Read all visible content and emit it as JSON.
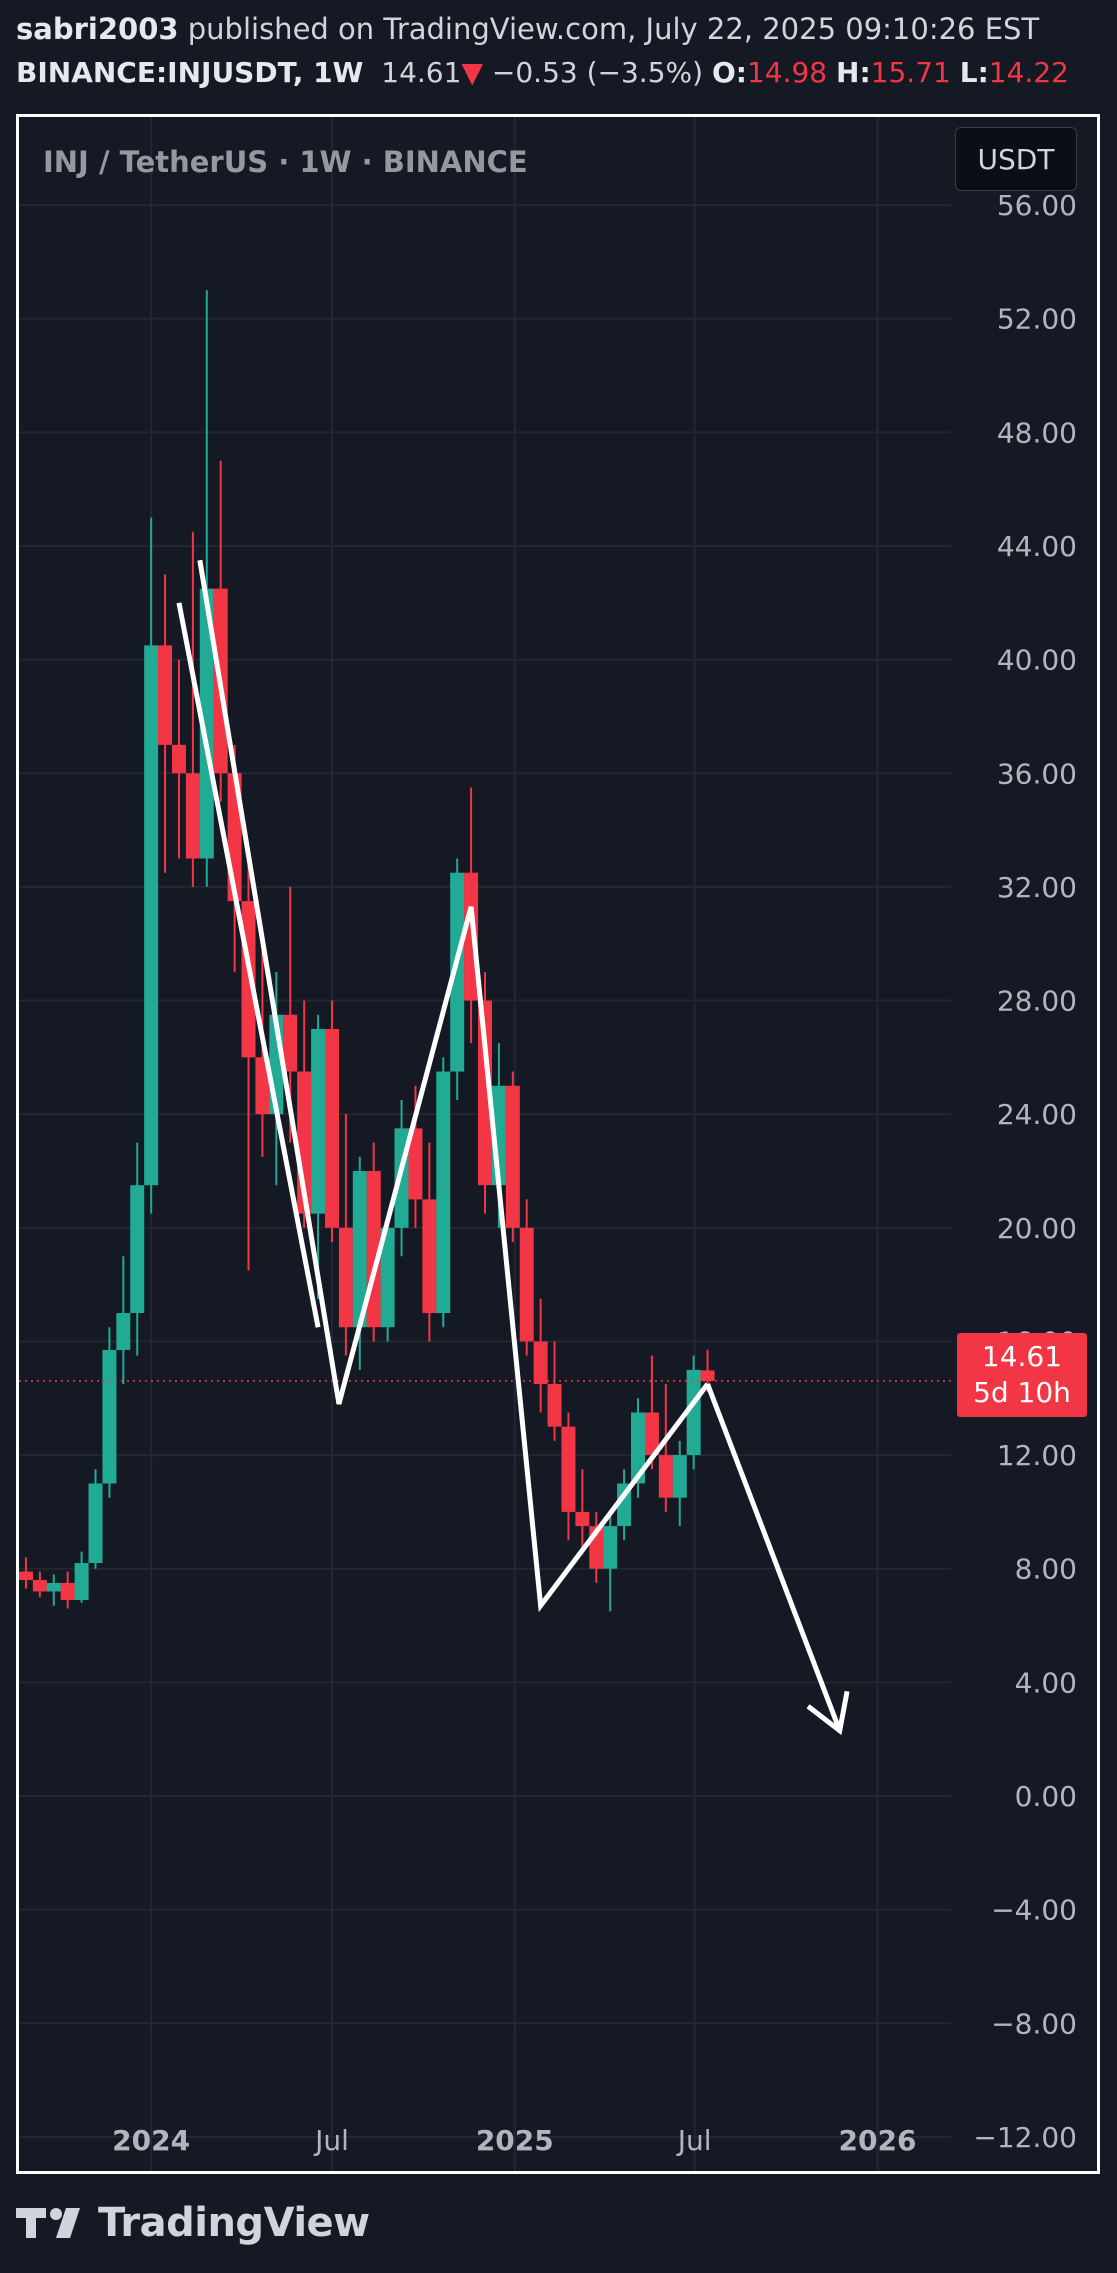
{
  "header": {
    "author": "sabri2003",
    "published_text": "published on TradingView.com, July 22, 2025 09:10:26 EST",
    "symbol": "BINANCE:INJUSDT, 1W",
    "last_price": "14.61",
    "change_arrow": "▼",
    "change": "−0.53 (−3.5%)",
    "open_label": "O:",
    "open": "14.98",
    "high_label": "H:",
    "high": "15.71",
    "low_label": "L:",
    "low": "14.22"
  },
  "chart_legend": "INJ / TetherUS · 1W · BINANCE",
  "currency_button": "USDT",
  "price_tag": {
    "price": "14.61",
    "countdown": "5d 10h"
  },
  "footer": {
    "logo_text": "TradingView",
    "logo_icon": "tradingview-logo-icon"
  },
  "colors": {
    "background": "#151924",
    "up": "#22ab94",
    "down": "#f23645",
    "grid": "#232733",
    "drawing": "#ffffff"
  },
  "chart_data": {
    "type": "candlestick",
    "title": "INJ / TetherUS · 1W · BINANCE",
    "interval": "1W",
    "x_tick_labels": [
      "2024",
      "Jul",
      "2025",
      "Jul",
      "2026"
    ],
    "x_ticks": [
      "2024-01-01",
      "2024-07-01",
      "2025-01-01",
      "2025-07-01",
      "2026-01-01"
    ],
    "x_range": [
      "2023-08-21",
      "2026-03-16"
    ],
    "y_tick_labels": [
      "56.00",
      "52.00",
      "48.00",
      "44.00",
      "40.00",
      "36.00",
      "32.00",
      "28.00",
      "24.00",
      "20.00",
      "16.00",
      "12.00",
      "8.00",
      "4.00",
      "0.00",
      "−4.00",
      "−8.00",
      "−12.00"
    ],
    "y_range": [
      -13.2,
      59.1
    ],
    "grid": true,
    "current_price": 14.61,
    "candles": [
      {
        "date": "2023-08-28",
        "open": 7.9,
        "high": 8.4,
        "low": 7.3,
        "close": 7.6
      },
      {
        "date": "2023-09-11",
        "open": 7.6,
        "high": 7.9,
        "low": 7.0,
        "close": 7.2
      },
      {
        "date": "2023-09-25",
        "open": 7.2,
        "high": 7.8,
        "low": 6.7,
        "close": 7.5
      },
      {
        "date": "2023-10-09",
        "open": 7.5,
        "high": 7.9,
        "low": 6.6,
        "close": 6.9
      },
      {
        "date": "2023-10-23",
        "open": 6.9,
        "high": 8.6,
        "low": 6.8,
        "close": 8.2
      },
      {
        "date": "2023-11-06",
        "open": 8.2,
        "high": 11.5,
        "low": 8.0,
        "close": 11.0
      },
      {
        "date": "2023-11-20",
        "open": 11.0,
        "high": 16.5,
        "low": 10.5,
        "close": 15.7
      },
      {
        "date": "2023-12-04",
        "open": 15.7,
        "high": 19.0,
        "low": 14.5,
        "close": 17.0
      },
      {
        "date": "2023-12-18",
        "open": 17.0,
        "high": 23.0,
        "low": 15.5,
        "close": 21.5
      },
      {
        "date": "2024-01-01",
        "open": 21.5,
        "high": 45.0,
        "low": 20.5,
        "close": 40.5
      },
      {
        "date": "2024-01-15",
        "open": 40.5,
        "high": 43.0,
        "low": 32.5,
        "close": 37.0
      },
      {
        "date": "2024-01-29",
        "open": 37.0,
        "high": 40.0,
        "low": 33.0,
        "close": 36.0
      },
      {
        "date": "2024-02-12",
        "open": 36.0,
        "high": 44.5,
        "low": 32.0,
        "close": 33.0
      },
      {
        "date": "2024-02-26",
        "open": 33.0,
        "high": 53.0,
        "low": 32.0,
        "close": 42.5
      },
      {
        "date": "2024-03-11",
        "open": 42.5,
        "high": 47.0,
        "low": 35.0,
        "close": 36.0
      },
      {
        "date": "2024-03-25",
        "open": 36.0,
        "high": 37.0,
        "low": 29.0,
        "close": 31.5
      },
      {
        "date": "2024-04-08",
        "open": 31.5,
        "high": 33.0,
        "low": 18.5,
        "close": 26.0
      },
      {
        "date": "2024-04-22",
        "open": 26.0,
        "high": 30.0,
        "low": 22.5,
        "close": 24.0
      },
      {
        "date": "2024-05-06",
        "open": 24.0,
        "high": 29.0,
        "low": 21.5,
        "close": 27.5
      },
      {
        "date": "2024-05-20",
        "open": 27.5,
        "high": 32.0,
        "low": 23.0,
        "close": 25.5
      },
      {
        "date": "2024-06-03",
        "open": 25.5,
        "high": 28.0,
        "low": 20.0,
        "close": 20.5
      },
      {
        "date": "2024-06-17",
        "open": 20.5,
        "high": 27.5,
        "low": 17.5,
        "close": 27.0
      },
      {
        "date": "2024-07-01",
        "open": 27.0,
        "high": 28.0,
        "low": 19.5,
        "close": 20.0
      },
      {
        "date": "2024-07-15",
        "open": 20.0,
        "high": 24.0,
        "low": 15.5,
        "close": 16.5
      },
      {
        "date": "2024-07-29",
        "open": 16.5,
        "high": 22.5,
        "low": 15.0,
        "close": 22.0
      },
      {
        "date": "2024-08-12",
        "open": 22.0,
        "high": 23.0,
        "low": 16.0,
        "close": 16.5
      },
      {
        "date": "2024-08-26",
        "open": 16.5,
        "high": 20.5,
        "low": 16.0,
        "close": 20.0
      },
      {
        "date": "2024-09-09",
        "open": 20.0,
        "high": 24.5,
        "low": 19.0,
        "close": 23.5
      },
      {
        "date": "2024-09-23",
        "open": 23.5,
        "high": 25.0,
        "low": 20.0,
        "close": 21.0
      },
      {
        "date": "2024-10-07",
        "open": 21.0,
        "high": 23.0,
        "low": 16.0,
        "close": 17.0
      },
      {
        "date": "2024-10-21",
        "open": 17.0,
        "high": 26.0,
        "low": 16.5,
        "close": 25.5
      },
      {
        "date": "2024-11-04",
        "open": 25.5,
        "high": 33.0,
        "low": 24.5,
        "close": 32.5
      },
      {
        "date": "2024-11-18",
        "open": 32.5,
        "high": 35.5,
        "low": 26.5,
        "close": 28.0
      },
      {
        "date": "2024-12-02",
        "open": 28.0,
        "high": 29.0,
        "low": 20.5,
        "close": 21.5
      },
      {
        "date": "2024-12-16",
        "open": 21.5,
        "high": 26.5,
        "low": 20.0,
        "close": 25.0
      },
      {
        "date": "2024-12-30",
        "open": 25.0,
        "high": 25.5,
        "low": 19.5,
        "close": 20.0
      },
      {
        "date": "2025-01-13",
        "open": 20.0,
        "high": 21.0,
        "low": 15.5,
        "close": 16.0
      },
      {
        "date": "2025-01-27",
        "open": 16.0,
        "high": 17.5,
        "low": 13.5,
        "close": 14.5
      },
      {
        "date": "2025-02-10",
        "open": 14.5,
        "high": 16.0,
        "low": 12.5,
        "close": 13.0
      },
      {
        "date": "2025-02-24",
        "open": 13.0,
        "high": 13.5,
        "low": 9.0,
        "close": 10.0
      },
      {
        "date": "2025-03-10",
        "open": 10.0,
        "high": 11.5,
        "low": 8.5,
        "close": 9.5
      },
      {
        "date": "2025-03-24",
        "open": 9.5,
        "high": 10.0,
        "low": 7.5,
        "close": 8.0
      },
      {
        "date": "2025-04-07",
        "open": 8.0,
        "high": 10.0,
        "low": 6.5,
        "close": 9.5
      },
      {
        "date": "2025-04-21",
        "open": 9.5,
        "high": 11.5,
        "low": 9.0,
        "close": 11.0
      },
      {
        "date": "2025-05-05",
        "open": 11.0,
        "high": 14.0,
        "low": 10.5,
        "close": 13.5
      },
      {
        "date": "2025-05-19",
        "open": 13.5,
        "high": 15.5,
        "low": 11.5,
        "close": 12.0
      },
      {
        "date": "2025-06-02",
        "open": 12.0,
        "high": 14.5,
        "low": 10.0,
        "close": 10.5
      },
      {
        "date": "2025-06-16",
        "open": 10.5,
        "high": 12.5,
        "low": 9.5,
        "close": 12.0
      },
      {
        "date": "2025-06-30",
        "open": 12.0,
        "high": 15.5,
        "low": 11.5,
        "close": 15.0
      },
      {
        "date": "2025-07-14",
        "open": 14.98,
        "high": 15.71,
        "low": 14.22,
        "close": 14.61
      }
    ],
    "drawings": [
      {
        "type": "polyline",
        "points": [
          [
            "2024-02-19",
            43.5
          ],
          [
            "2024-07-08",
            13.8
          ],
          [
            "2024-11-18",
            31.3
          ],
          [
            "2025-01-27",
            6.7
          ],
          [
            "2025-07-14",
            14.5
          ]
        ]
      },
      {
        "type": "polyline",
        "points": [
          [
            "2024-01-29",
            42.0
          ],
          [
            "2024-06-17",
            16.5
          ]
        ]
      },
      {
        "type": "arrow",
        "from": [
          "2025-07-14",
          14.5
        ],
        "to": [
          "2025-11-24",
          2.3
        ]
      }
    ]
  }
}
